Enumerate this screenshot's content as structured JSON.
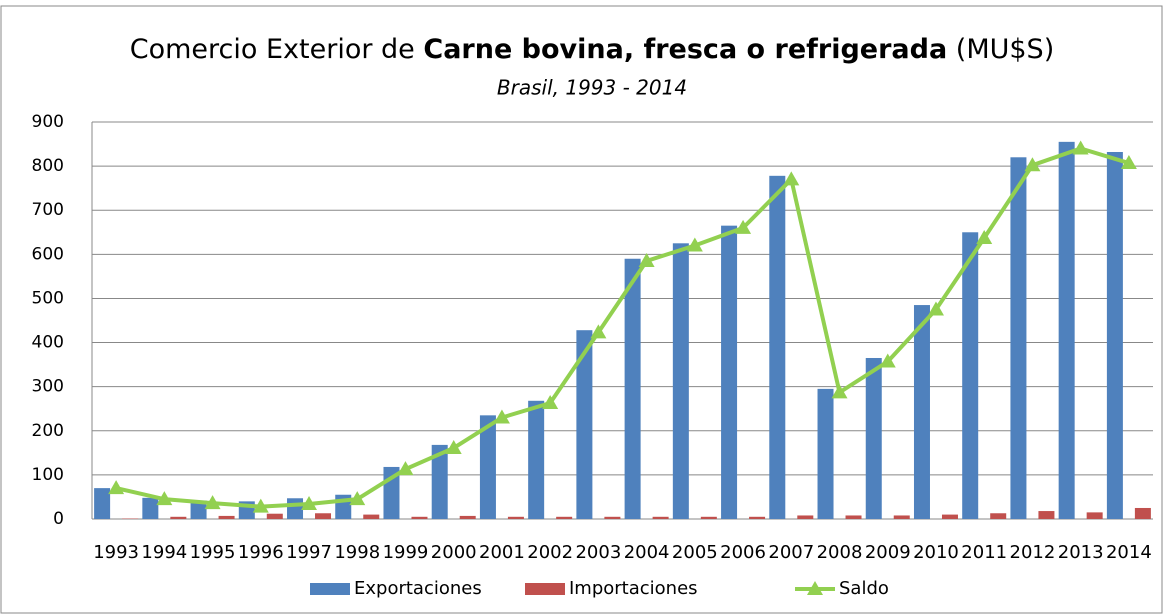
{
  "chart_data": {
    "type": "bar",
    "title": [
      "Comercio Exterior de",
      "Carne bovina, fresca o refrigerada",
      "(MU$S)"
    ],
    "subtitle": "Brasil, 1993 - 2014",
    "categories": [
      "1993",
      "1994",
      "1995",
      "1996",
      "1997",
      "1998",
      "1999",
      "2000",
      "2001",
      "2002",
      "2003",
      "2004",
      "2005",
      "2006",
      "2007",
      "2008",
      "2009",
      "2010",
      "2011",
      "2012",
      "2013",
      "2014"
    ],
    "series": [
      {
        "name": "Exportaciones",
        "color": "#4f81bd",
        "type": "bar",
        "values": [
          70,
          48,
          42,
          40,
          47,
          55,
          118,
          168,
          235,
          268,
          428,
          590,
          625,
          665,
          778,
          295,
          365,
          485,
          650,
          820,
          855,
          832
        ]
      },
      {
        "name": "Importaciones",
        "color": "#c0504d",
        "type": "bar",
        "values": [
          1,
          5,
          7,
          12,
          13,
          10,
          5,
          7,
          5,
          5,
          5,
          5,
          5,
          5,
          8,
          8,
          8,
          10,
          13,
          18,
          15,
          25
        ]
      },
      {
        "name": "Saldo",
        "color": "#92d050",
        "type": "line",
        "values": [
          70,
          45,
          36,
          28,
          34,
          45,
          113,
          161,
          230,
          263,
          423,
          585,
          620,
          660,
          770,
          287,
          357,
          475,
          637,
          802,
          840,
          807
        ]
      }
    ],
    "ylim": [
      0,
      900
    ],
    "yticks": [
      0,
      100,
      200,
      300,
      400,
      500,
      600,
      700,
      800,
      900
    ],
    "grid": true,
    "legend": "bottom"
  }
}
